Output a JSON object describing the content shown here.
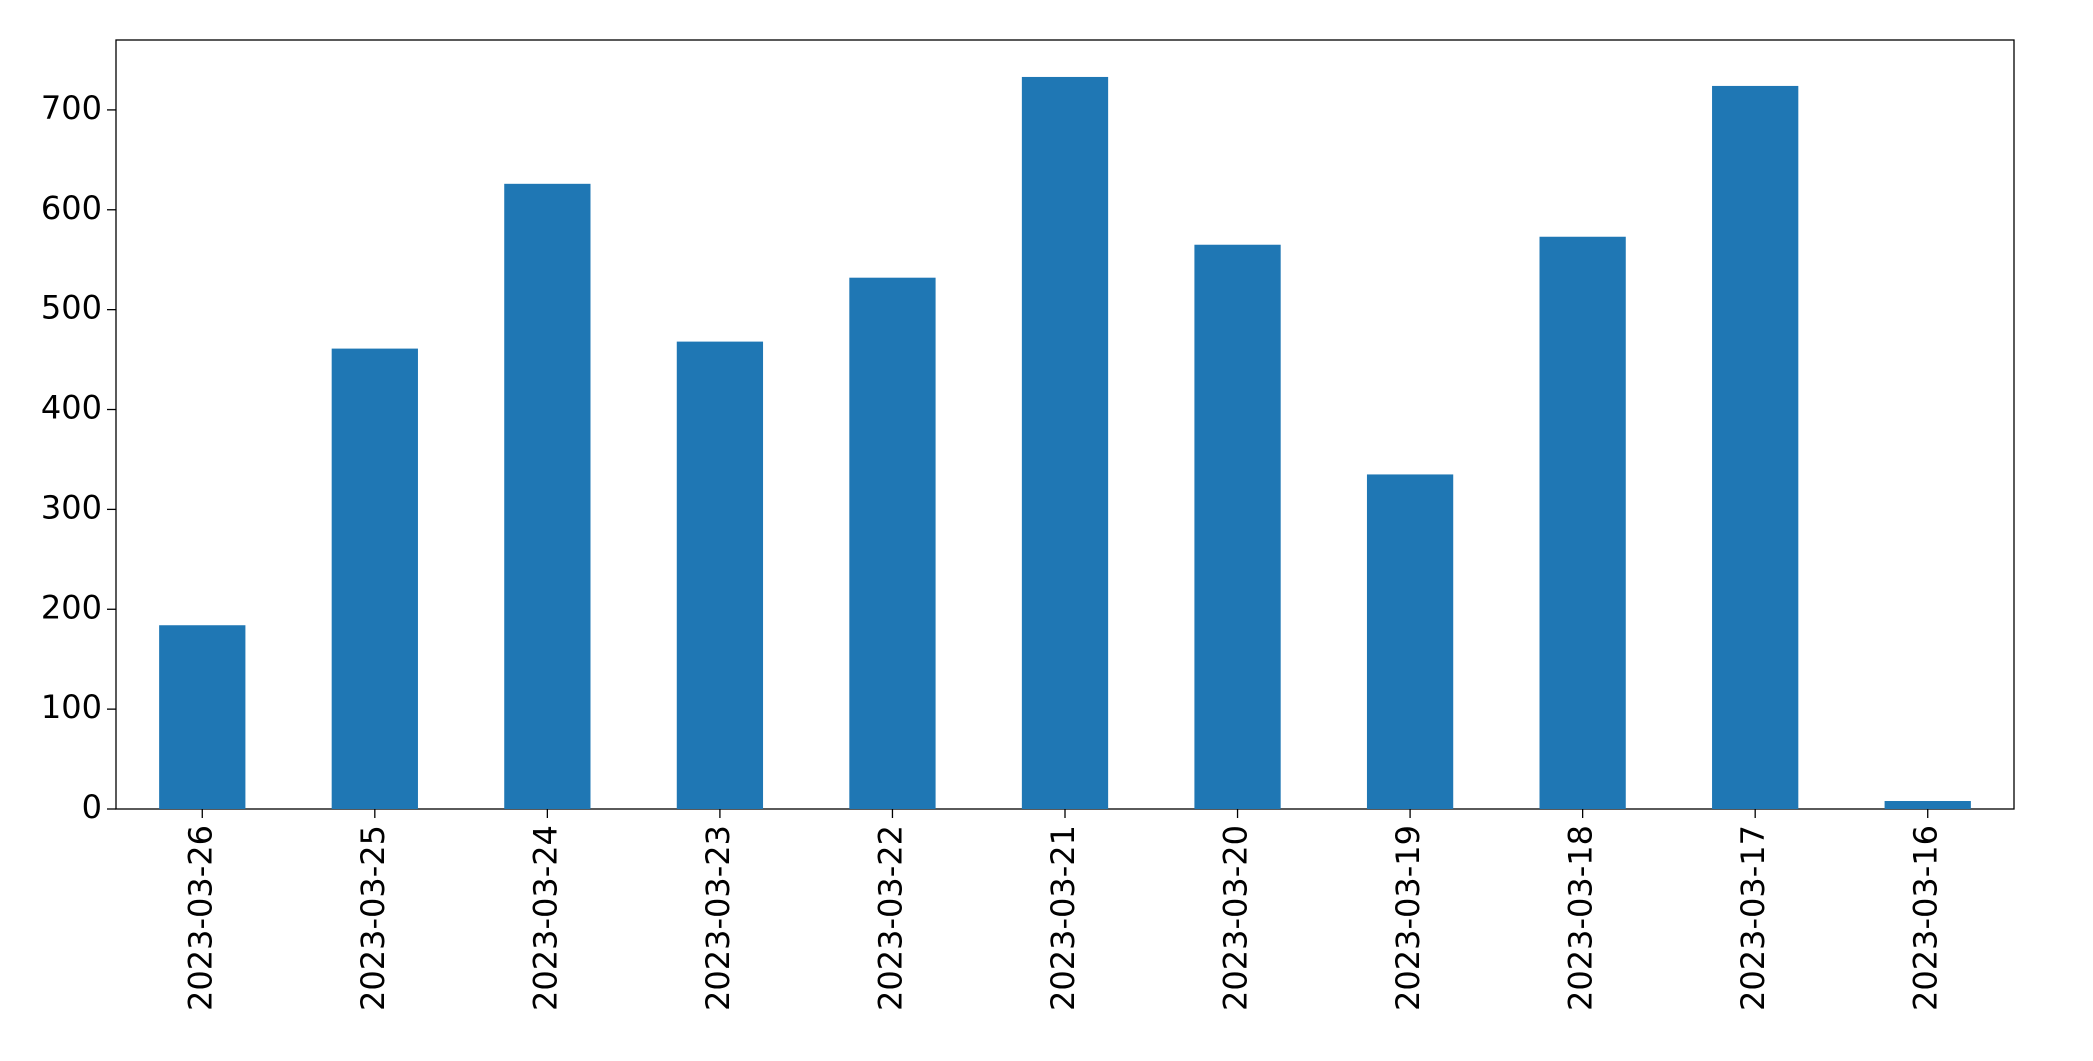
{
  "chart_data": {
    "type": "bar",
    "categories": [
      "2023-03-26",
      "2023-03-25",
      "2023-03-24",
      "2023-03-23",
      "2023-03-22",
      "2023-03-21",
      "2023-03-20",
      "2023-03-19",
      "2023-03-18",
      "2023-03-17",
      "2023-03-16"
    ],
    "values": [
      184,
      461,
      626,
      468,
      532,
      733,
      565,
      335,
      573,
      724,
      8
    ],
    "color": "#1f77b4",
    "ylim": [
      0,
      770
    ],
    "yticks": [
      0,
      100,
      200,
      300,
      400,
      500,
      600,
      700
    ],
    "grid": false
  }
}
